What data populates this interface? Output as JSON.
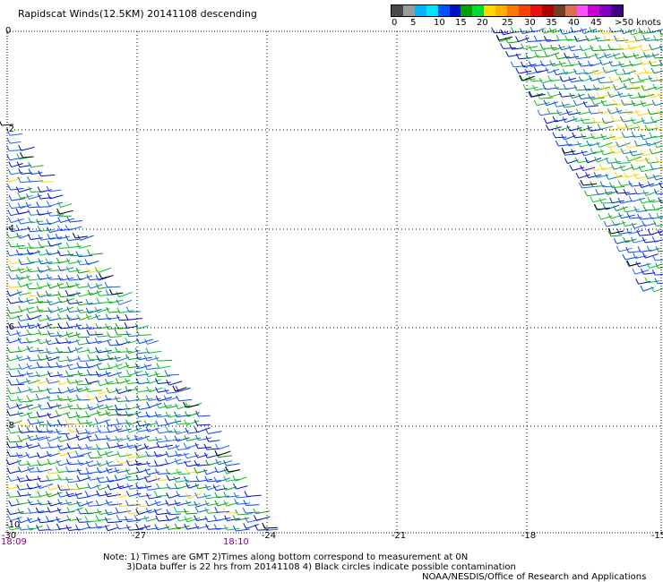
{
  "title": "Rapidscat Winds(12.5KM) 20141108 descending",
  "legend": {
    "colors": [
      "#4a4a4a",
      "#9a9a9a",
      "#00b4ff",
      "#00e4ff",
      "#0050ff",
      "#0010c8",
      "#00a000",
      "#00dc30",
      "#ffd800",
      "#ffb000",
      "#ff7800",
      "#ff4000",
      "#e81010",
      "#b00000",
      "#704020",
      "#d87050",
      "#ff50ff",
      "#c800d0",
      "#8000c8",
      "#400080"
    ],
    "labels": [
      "0",
      "5",
      "10",
      "15",
      "20",
      "25",
      "30",
      "35",
      "40",
      "45",
      ">50 knots"
    ]
  },
  "axes": {
    "x_ticks": [
      "-30",
      "-27",
      "-24",
      "-21",
      "-18",
      "-15"
    ],
    "y_ticks": [
      "0",
      "-2",
      "-4",
      "-6",
      "-8",
      "-10"
    ]
  },
  "times": [
    "18:09",
    "18:10"
  ],
  "notes": {
    "line1": "Note: 1) Times are GMT 2)Times along bottom correspond to measurement at 0N",
    "line2": "3)Data buffer is 22 hrs from 20141108 4) Black circles indicate possible contamination",
    "credit": "NOAA/NESDIS/Office of Research and Applications"
  }
}
